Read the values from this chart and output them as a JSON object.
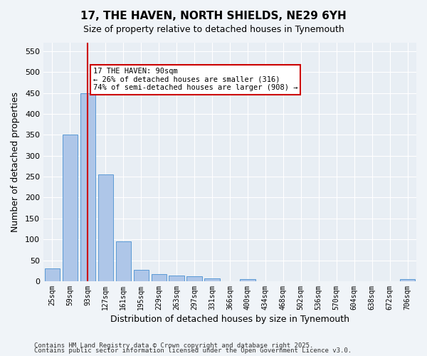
{
  "title1": "17, THE HAVEN, NORTH SHIELDS, NE29 6YH",
  "title2": "Size of property relative to detached houses in Tynemouth",
  "xlabel": "Distribution of detached houses by size in Tynemouth",
  "ylabel": "Number of detached properties",
  "categories": [
    "25sqm",
    "59sqm",
    "93sqm",
    "127sqm",
    "161sqm",
    "195sqm",
    "229sqm",
    "263sqm",
    "297sqm",
    "331sqm",
    "366sqm",
    "400sqm",
    "434sqm",
    "468sqm",
    "502sqm",
    "536sqm",
    "570sqm",
    "604sqm",
    "638sqm",
    "672sqm",
    "706sqm"
  ],
  "values": [
    30,
    350,
    450,
    255,
    95,
    27,
    17,
    14,
    12,
    6,
    0,
    5,
    0,
    0,
    0,
    0,
    0,
    0,
    0,
    0,
    5
  ],
  "bar_color": "#aec6e8",
  "bar_edge_color": "#5a9ad5",
  "vline_x_index": 2,
  "vline_color": "#cc0000",
  "annotation_text": "17 THE HAVEN: 90sqm\n← 26% of detached houses are smaller (316)\n74% of semi-detached houses are larger (908) →",
  "annotation_box_color": "#cc0000",
  "ylim": [
    0,
    570
  ],
  "yticks": [
    0,
    50,
    100,
    150,
    200,
    250,
    300,
    350,
    400,
    450,
    500,
    550
  ],
  "background_color": "#e8eef4",
  "grid_color": "#ffffff",
  "footer1": "Contains HM Land Registry data © Crown copyright and database right 2025.",
  "footer2": "Contains public sector information licensed under the Open Government Licence v3.0."
}
